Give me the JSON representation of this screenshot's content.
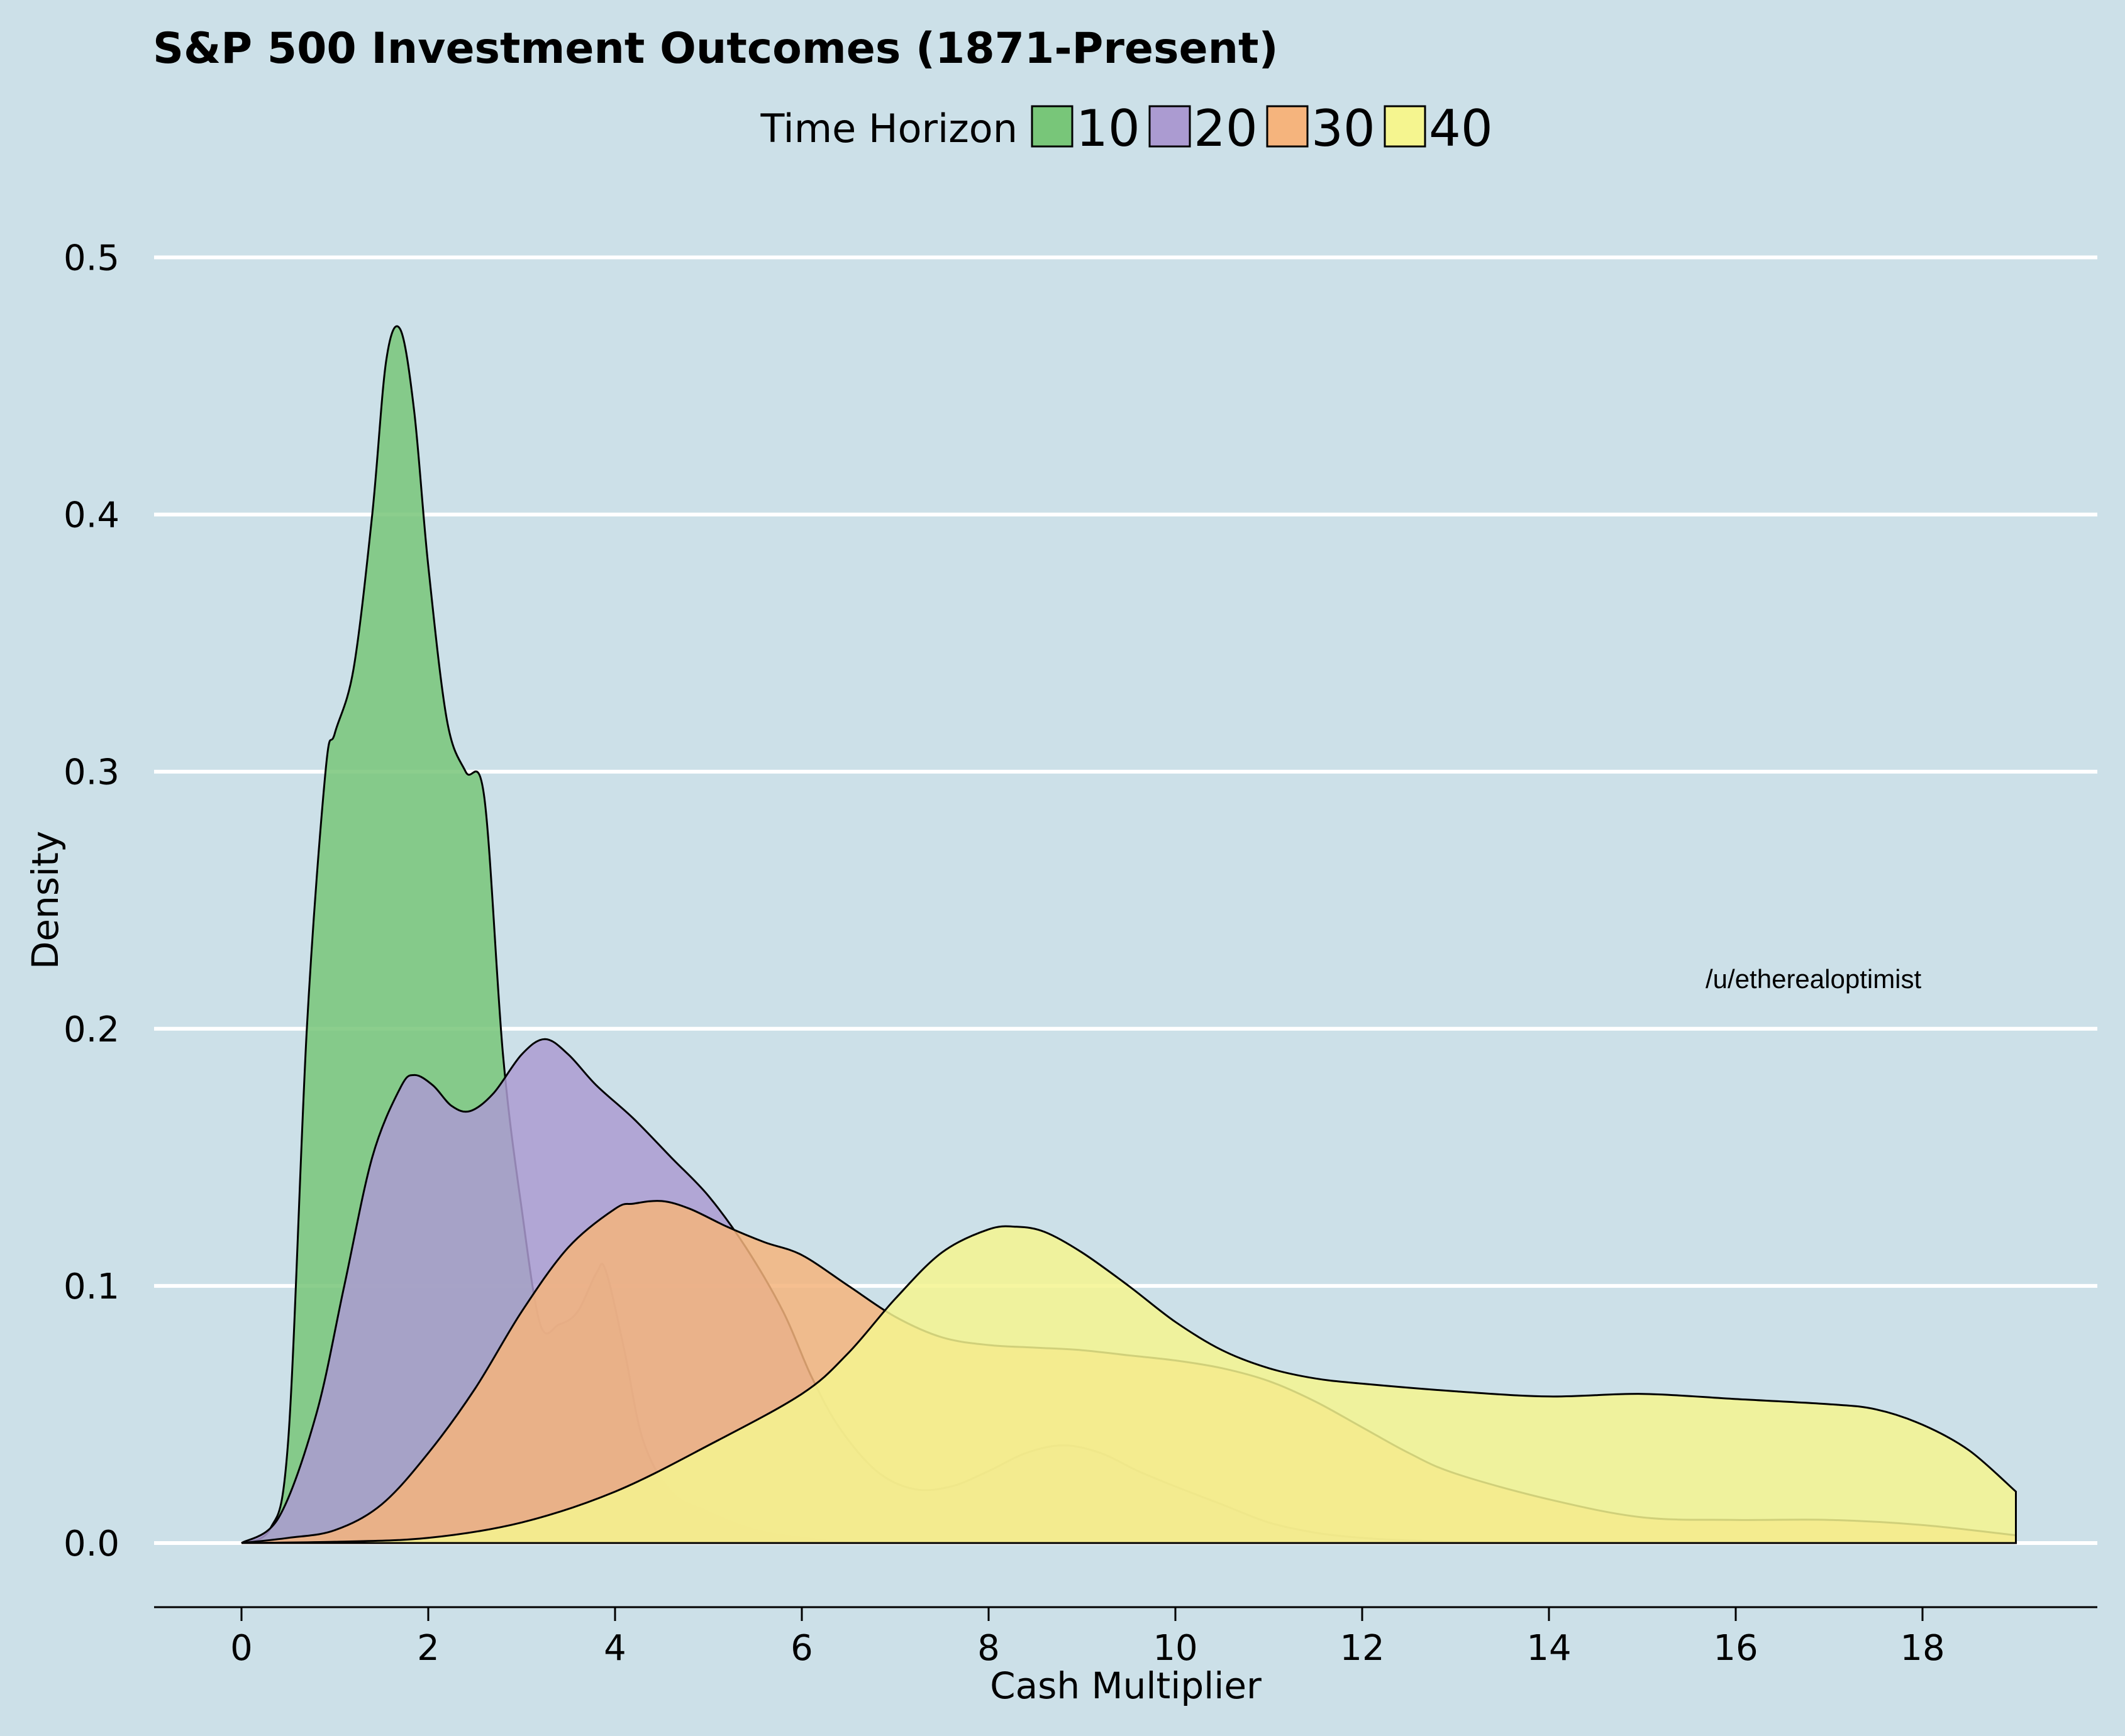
{
  "chart_data": {
    "type": "area",
    "title": "S&P 500 Investment Outcomes (1871-Present)",
    "xlabel": "Cash Multiplier",
    "ylabel": "Density",
    "xlim": [
      -1,
      19.9
    ],
    "ylim": [
      -0.025,
      0.5
    ],
    "xticks": [
      0,
      2,
      4,
      6,
      8,
      10,
      12,
      14,
      16,
      18
    ],
    "yticks": [
      0.0,
      0.1,
      0.2,
      0.3,
      0.4,
      0.5
    ],
    "ytick_labels": [
      "0.0",
      "0.1",
      "0.2",
      "0.3",
      "0.4",
      "0.5"
    ],
    "grid": "horizontal",
    "legend": {
      "title": "Time Horizon",
      "placement": "top-center"
    },
    "watermark": "/u/etherealoptimist",
    "series": [
      {
        "name": "10",
        "color": "#78c679",
        "x": [
          0,
          0.3,
          0.5,
          0.7,
          0.9,
          1.0,
          1.2,
          1.4,
          1.55,
          1.7,
          1.85,
          2.0,
          2.2,
          2.4,
          2.6,
          2.8,
          3.0,
          3.2,
          3.4,
          3.6,
          3.8,
          3.9,
          4.1,
          4.3,
          4.6,
          5.0,
          5.5,
          6.0,
          6.5
        ],
        "y": [
          0,
          0.005,
          0.04,
          0.2,
          0.3,
          0.315,
          0.34,
          0.4,
          0.46,
          0.472,
          0.44,
          0.38,
          0.32,
          0.3,
          0.29,
          0.19,
          0.13,
          0.085,
          0.085,
          0.09,
          0.105,
          0.106,
          0.075,
          0.04,
          0.02,
          0.012,
          0.005,
          0.002,
          0
        ]
      },
      {
        "name": "20",
        "color": "#ab9bd1",
        "x": [
          0,
          0.4,
          0.8,
          1.1,
          1.4,
          1.7,
          1.85,
          2.05,
          2.25,
          2.45,
          2.7,
          3.0,
          3.25,
          3.5,
          3.8,
          4.2,
          4.6,
          5.0,
          5.4,
          5.8,
          6.1,
          6.4,
          6.8,
          7.2,
          7.6,
          8.0,
          8.4,
          8.8,
          9.2,
          9.6,
          10.0,
          10.5,
          11.0,
          11.5,
          12.0,
          12.5,
          13.0,
          14.0
        ],
        "y": [
          0,
          0.01,
          0.05,
          0.1,
          0.15,
          0.177,
          0.182,
          0.178,
          0.17,
          0.168,
          0.175,
          0.19,
          0.196,
          0.19,
          0.178,
          0.165,
          0.15,
          0.135,
          0.115,
          0.09,
          0.065,
          0.045,
          0.028,
          0.021,
          0.022,
          0.028,
          0.035,
          0.038,
          0.035,
          0.028,
          0.022,
          0.015,
          0.008,
          0.004,
          0.002,
          0.001,
          0.0005,
          0
        ]
      },
      {
        "name": "30",
        "color": "#f5b47d",
        "x": [
          0,
          0.5,
          1.0,
          1.5,
          2.0,
          2.5,
          3.0,
          3.5,
          4.0,
          4.2,
          4.5,
          4.8,
          5.2,
          5.6,
          6.0,
          6.5,
          7.0,
          7.5,
          8.0,
          8.5,
          9.0,
          9.5,
          10.0,
          10.5,
          11.0,
          11.5,
          12.0,
          12.5,
          13.0,
          14.0,
          15.0,
          16.0,
          17.0,
          18.0,
          19.0
        ],
        "y": [
          0,
          0.002,
          0.005,
          0.015,
          0.035,
          0.06,
          0.09,
          0.115,
          0.13,
          0.132,
          0.133,
          0.13,
          0.123,
          0.117,
          0.112,
          0.1,
          0.088,
          0.08,
          0.077,
          0.076,
          0.075,
          0.073,
          0.071,
          0.068,
          0.063,
          0.055,
          0.045,
          0.035,
          0.027,
          0.017,
          0.01,
          0.009,
          0.009,
          0.007,
          0.003
        ]
      },
      {
        "name": "40",
        "color": "#f5f58f",
        "x": [
          0,
          1.0,
          2.0,
          3.0,
          4.0,
          5.0,
          6.0,
          6.5,
          7.0,
          7.5,
          8.0,
          8.3,
          8.6,
          9.0,
          9.5,
          10.0,
          10.5,
          11.0,
          11.5,
          12.0,
          13.0,
          14.0,
          15.0,
          16.0,
          17.0,
          17.5,
          18.0,
          18.5,
          19.0
        ],
        "y": [
          0,
          0.0005,
          0.002,
          0.008,
          0.02,
          0.038,
          0.058,
          0.074,
          0.095,
          0.113,
          0.122,
          0.123,
          0.121,
          0.113,
          0.1,
          0.086,
          0.075,
          0.068,
          0.064,
          0.062,
          0.059,
          0.057,
          0.058,
          0.056,
          0.054,
          0.052,
          0.046,
          0.036,
          0.02
        ]
      }
    ]
  }
}
